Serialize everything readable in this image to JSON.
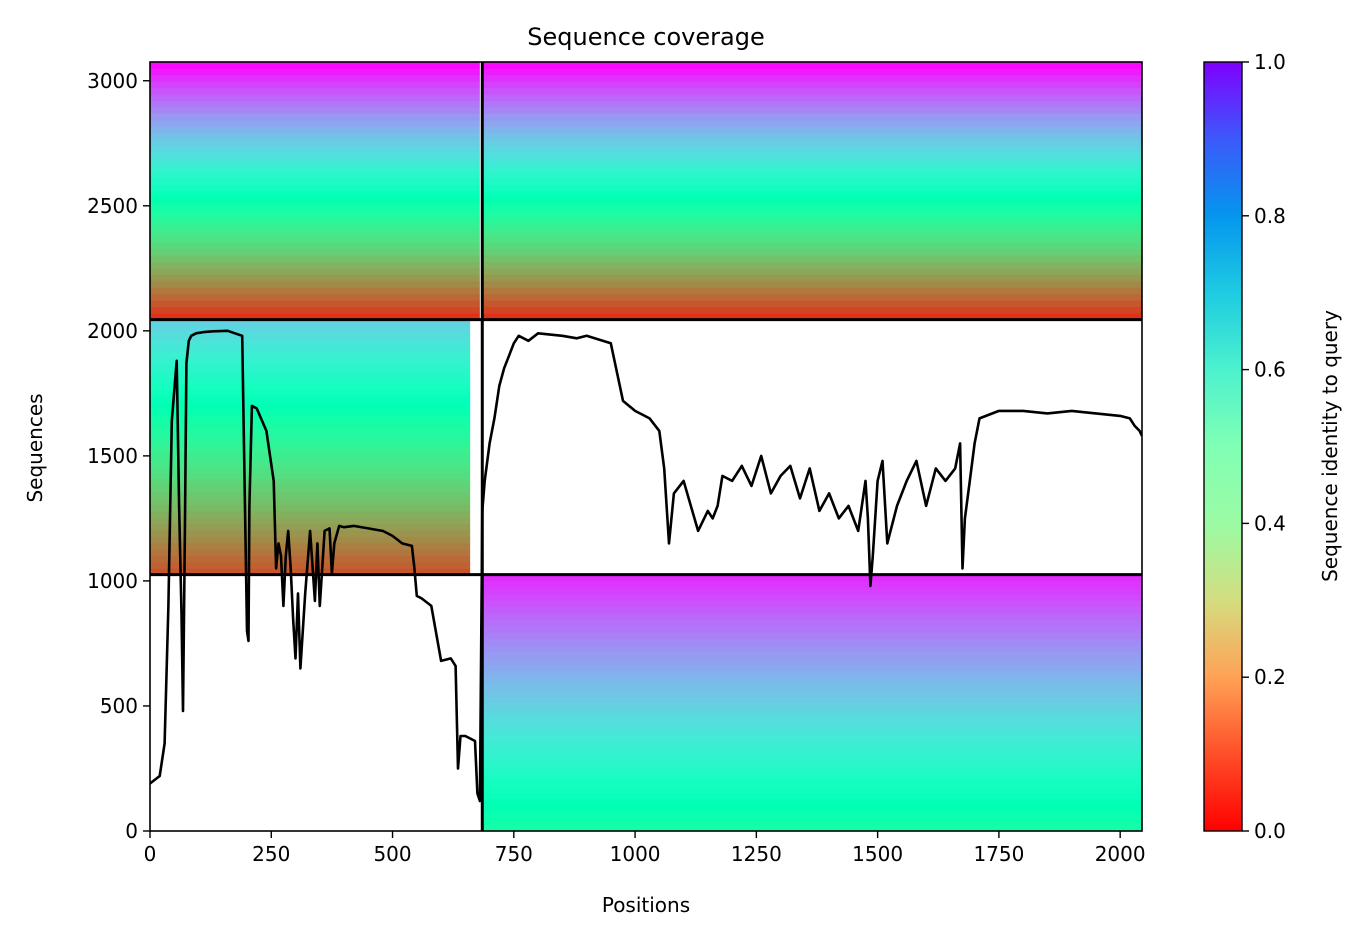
{
  "chart_data": {
    "type": "heatmap",
    "title": "Sequence coverage",
    "xlabel": "Positions",
    "ylabel": "Sequences",
    "xlim": [
      0,
      2045
    ],
    "ylim": [
      0,
      3075
    ],
    "x_ticks": [
      0,
      250,
      500,
      750,
      1000,
      1250,
      1500,
      1750,
      2000
    ],
    "y_ticks": [
      0,
      500,
      1000,
      1500,
      2000,
      2500,
      3000
    ],
    "grid": false,
    "colormap": "rainbow_r",
    "colorbar": {
      "label": "Sequence identity to query",
      "range": [
        0.0,
        1.0
      ],
      "ticks": [
        "0.0",
        "0.2",
        "0.4",
        "0.6",
        "0.8",
        "1.0"
      ]
    },
    "block_boundaries": {
      "x": [
        685
      ],
      "y": [
        1025,
        2045
      ]
    },
    "blocks": [
      {
        "x": [
          685,
          2045
        ],
        "y": [
          0,
          1025
        ],
        "identity_top": 0.95,
        "identity_bottom": 0.45,
        "coverage_x": [
          685,
          2045
        ]
      },
      {
        "x": [
          0,
          685
        ],
        "y": [
          1025,
          2045
        ],
        "identity_top": 0.7,
        "identity_bottom": 0.1,
        "coverage_x": [
          0,
          660
        ]
      },
      {
        "x": [
          0,
          685
        ],
        "y": [
          2045,
          3075
        ],
        "identity_top": 1.0,
        "identity_bottom": 0.05,
        "coverage_x": [
          0,
          680
        ]
      },
      {
        "x": [
          685,
          2045
        ],
        "y": [
          2045,
          3075
        ],
        "identity_top": 1.0,
        "identity_bottom": 0.05,
        "coverage_x": [
          685,
          2045
        ]
      }
    ],
    "coverage_line": {
      "color": "#000000",
      "x": [
        0,
        20,
        30,
        38,
        45,
        55,
        60,
        65,
        68,
        72,
        75,
        80,
        85,
        95,
        110,
        130,
        160,
        190,
        200,
        203,
        205,
        210,
        220,
        240,
        255,
        260,
        265,
        270,
        275,
        280,
        285,
        290,
        295,
        300,
        305,
        310,
        320,
        330,
        340,
        345,
        350,
        360,
        370,
        375,
        380,
        390,
        400,
        420,
        450,
        480,
        500,
        520,
        540,
        545,
        550,
        560,
        580,
        600,
        620,
        630,
        635,
        640,
        650,
        660,
        670,
        675,
        680,
        685,
        690,
        700,
        710,
        720,
        730,
        740,
        750,
        760,
        780,
        800,
        850,
        880,
        900,
        950,
        975,
        1000,
        1030,
        1050,
        1060,
        1070,
        1080,
        1100,
        1130,
        1150,
        1160,
        1170,
        1180,
        1200,
        1220,
        1240,
        1260,
        1280,
        1300,
        1320,
        1340,
        1360,
        1380,
        1400,
        1420,
        1440,
        1460,
        1475,
        1480,
        1485,
        1490,
        1500,
        1510,
        1520,
        1540,
        1560,
        1580,
        1600,
        1620,
        1640,
        1660,
        1670,
        1675,
        1680,
        1690,
        1700,
        1710,
        1750,
        1800,
        1850,
        1900,
        1950,
        2000,
        2020,
        2030,
        2040,
        2045
      ],
      "y": [
        190,
        220,
        350,
        900,
        1640,
        1880,
        1300,
        870,
        480,
        1200,
        1870,
        1960,
        1980,
        1990,
        1995,
        1998,
        2000,
        1980,
        800,
        760,
        1300,
        1700,
        1690,
        1600,
        1400,
        1050,
        1150,
        1100,
        900,
        1100,
        1200,
        1050,
        850,
        690,
        950,
        650,
        950,
        1200,
        920,
        1150,
        900,
        1200,
        1210,
        1030,
        1150,
        1220,
        1215,
        1220,
        1210,
        1200,
        1180,
        1150,
        1140,
        1050,
        940,
        930,
        900,
        680,
        690,
        660,
        250,
        380,
        380,
        370,
        360,
        150,
        120,
        1280,
        1400,
        1550,
        1650,
        1780,
        1850,
        1900,
        1950,
        1980,
        1960,
        1990,
        1980,
        1970,
        1980,
        1950,
        1720,
        1680,
        1650,
        1600,
        1450,
        1150,
        1350,
        1400,
        1200,
        1280,
        1250,
        1300,
        1420,
        1400,
        1460,
        1380,
        1500,
        1350,
        1420,
        1460,
        1330,
        1450,
        1280,
        1350,
        1250,
        1300,
        1200,
        1400,
        1250,
        980,
        1100,
        1400,
        1480,
        1150,
        1300,
        1400,
        1480,
        1300,
        1450,
        1400,
        1450,
        1550,
        1050,
        1250,
        1400,
        1550,
        1650,
        1680,
        1680,
        1670,
        1680,
        1670,
        1660,
        1650,
        1620,
        1600,
        1580
      ]
    }
  }
}
